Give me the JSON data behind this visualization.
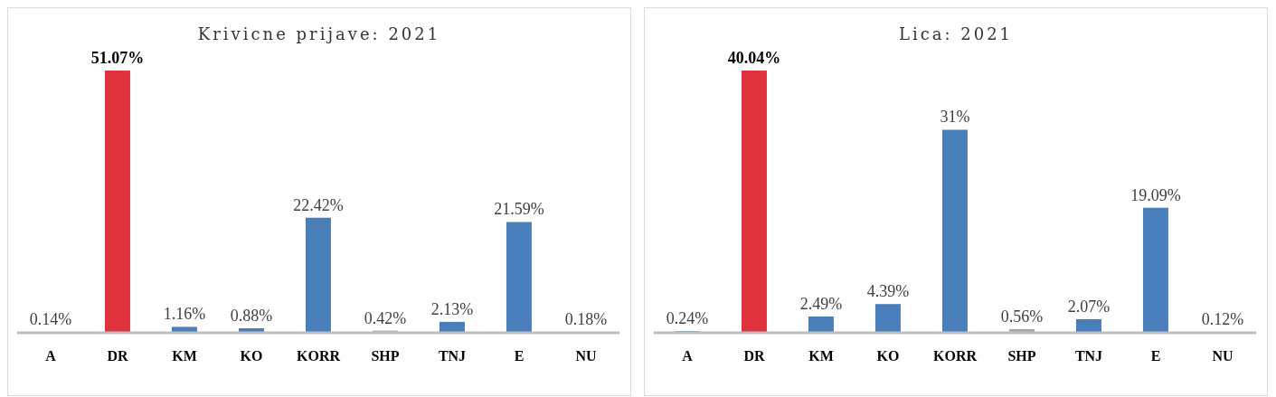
{
  "chart_data": [
    {
      "type": "bar",
      "title": "Krivicne prijave: 2021",
      "categories": [
        "A",
        "DR",
        "KM",
        "KO",
        "KORR",
        "SHP",
        "TNJ",
        "E",
        "NU"
      ],
      "values": [
        0.14,
        51.07,
        1.16,
        0.88,
        22.42,
        0.42,
        2.13,
        21.59,
        0.18
      ],
      "colors": [
        "#4a7ebb",
        "#e0323c",
        "#4a7ebb",
        "#4a7ebb",
        "#4a7ebb",
        "#a6a6a6",
        "#4a7ebb",
        "#4a7ebb",
        "#4a7ebb"
      ],
      "value_labels": [
        "0.14%",
        "51.07%",
        "1.16%",
        "0.88%",
        "22.42%",
        "0.42%",
        "2.13%",
        "21.59%",
        "0.18%"
      ],
      "grid": false,
      "legend": false
    },
    {
      "type": "bar",
      "title": "Lica: 2021",
      "categories": [
        "A",
        "DR",
        "KM",
        "KO",
        "KORR",
        "SHP",
        "TNJ",
        "E",
        "NU"
      ],
      "values": [
        0.24,
        40.04,
        2.49,
        4.39,
        31,
        0.56,
        2.07,
        19.09,
        0.12
      ],
      "colors": [
        "#4a7ebb",
        "#e0323c",
        "#4a7ebb",
        "#4a7ebb",
        "#4a7ebb",
        "#a6a6a6",
        "#4a7ebb",
        "#4a7ebb",
        "#4a7ebb"
      ],
      "value_labels": [
        "0.24%",
        "40.04%",
        "2.49%",
        "4.39%",
        "31%",
        "0.56%",
        "2.07%",
        "19.09%",
        "0.12%"
      ],
      "grid": false,
      "legend": false
    }
  ]
}
